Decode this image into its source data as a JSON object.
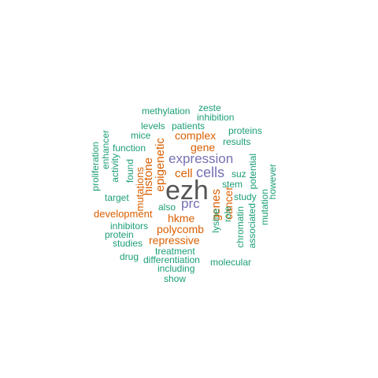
{
  "words": {
    "ezh": "ezh",
    "expression": "expression",
    "cells": "cells",
    "prc": "prc",
    "cell": "cell",
    "complex": "complex",
    "gene": "gene",
    "histone": "histone",
    "epigenetic": "epigenetic",
    "genes": "genes",
    "cancer": "cancer",
    "hkme": "hkme",
    "polycomb": "polycomb",
    "repressive": "repressive",
    "development": "development",
    "mutations": "mutations",
    "methylation": "methylation",
    "zeste": "zeste",
    "inhibition": "inhibition",
    "levels": "levels",
    "patients": "patients",
    "proteins": "proteins",
    "mice": "mice",
    "results": "results",
    "function": "function",
    "enhancer": "enhancer",
    "proliferation": "proliferation",
    "activity": "activity",
    "found": "found",
    "target": "target",
    "suz": "suz",
    "stem": "stem",
    "study": "study",
    "potential": "potential",
    "however": "however",
    "mutation": "mutation",
    "also": "also",
    "role": "role",
    "lysine": "lysine",
    "chromatin": "chromatin",
    "associated": "associated",
    "inhibitors": "inhibitors",
    "protein": "protein",
    "studies": "studies",
    "treatment": "treatment",
    "drug": "drug",
    "differentiation": "differentiation",
    "molecular": "molecular",
    "including": "including",
    "show": "show"
  },
  "colors": {
    "teal": "#1b9e77",
    "orange": "#d95f02",
    "purple": "#7570b3",
    "gray": "#555555"
  }
}
